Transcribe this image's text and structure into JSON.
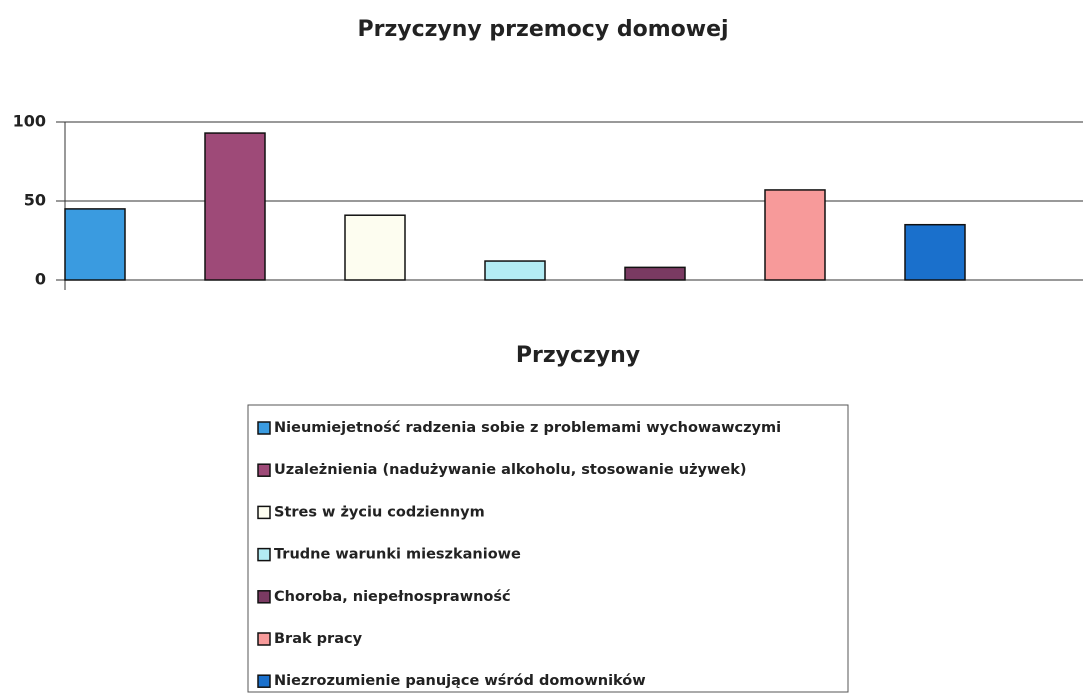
{
  "chart_data": {
    "type": "bar",
    "title": "Przyczyny przemocy domowej",
    "x_label": "Przyczyny",
    "categories": [
      null
    ],
    "series": [
      {
        "name": "Nieumiejetność radzenia sobie z problemami wychowawczymi",
        "color": "#3a9be0",
        "values": [
          45
        ]
      },
      {
        "name": "Uzależnienia (nadużywanie alkoholu, stosowanie używek)",
        "color": "#9e4a78",
        "values": [
          93
        ]
      },
      {
        "name": "Stres w życiu codziennym",
        "color": "#fdfdf0",
        "values": [
          41
        ]
      },
      {
        "name": "Trudne warunki mieszkaniowe",
        "color": "#b3ecf4",
        "values": [
          12
        ]
      },
      {
        "name": "Choroba, niepełnosprawność",
        "color": "#7a3a62",
        "values": [
          8
        ]
      },
      {
        "name": "Brak pracy",
        "color": "#f79a9a",
        "values": [
          57
        ]
      },
      {
        "name": "Niezrozumienie panujące wśród domowników",
        "color": "#1a70cc",
        "values": [
          35
        ]
      }
    ],
    "ylim": [
      0,
      100
    ],
    "yticks": [
      0,
      50,
      100
    ],
    "grid": true,
    "legend": "bottom"
  }
}
